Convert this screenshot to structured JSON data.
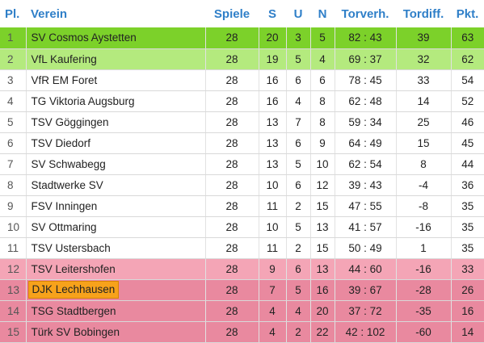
{
  "header": {
    "pos": "Pl.",
    "team": "Verein",
    "games": "Spiele",
    "won": "S",
    "draw": "U",
    "lost": "N",
    "goals": "Torverh.",
    "diff": "Tordiff.",
    "points": "Pkt."
  },
  "colors": {
    "header_text": "#2f7fc8",
    "promotion": "#7cd12a",
    "relegation_playoff_up": "#b4ea7e",
    "relegation_playoff_down": "#f4a5b6",
    "relegation": "#e9899f",
    "highlight": "#f7a21b"
  },
  "highlighted_team": "DJK Lechhausen",
  "rows": [
    {
      "pos": "1",
      "team": "SV Cosmos Aystetten",
      "games": "28",
      "won": "20",
      "draw": "3",
      "lost": "5",
      "goals": "82 : 43",
      "diff": "39",
      "points": "63",
      "zone": "z-top1"
    },
    {
      "pos": "2",
      "team": "VfL Kaufering",
      "games": "28",
      "won": "19",
      "draw": "5",
      "lost": "4",
      "goals": "69 : 37",
      "diff": "32",
      "points": "62",
      "zone": "z-top2"
    },
    {
      "pos": "3",
      "team": "VfR EM Foret",
      "games": "28",
      "won": "16",
      "draw": "6",
      "lost": "6",
      "goals": "78 : 45",
      "diff": "33",
      "points": "54",
      "zone": "z-norm"
    },
    {
      "pos": "4",
      "team": "TG Viktoria Augsburg",
      "games": "28",
      "won": "16",
      "draw": "4",
      "lost": "8",
      "goals": "62 : 48",
      "diff": "14",
      "points": "52",
      "zone": "z-norm"
    },
    {
      "pos": "5",
      "team": "TSV Göggingen",
      "games": "28",
      "won": "13",
      "draw": "7",
      "lost": "8",
      "goals": "59 : 34",
      "diff": "25",
      "points": "46",
      "zone": "z-norm"
    },
    {
      "pos": "6",
      "team": "TSV Diedorf",
      "games": "28",
      "won": "13",
      "draw": "6",
      "lost": "9",
      "goals": "64 : 49",
      "diff": "15",
      "points": "45",
      "zone": "z-norm"
    },
    {
      "pos": "7",
      "team": "SV Schwabegg",
      "games": "28",
      "won": "13",
      "draw": "5",
      "lost": "10",
      "goals": "62 : 54",
      "diff": "8",
      "points": "44",
      "zone": "z-norm"
    },
    {
      "pos": "8",
      "team": "Stadtwerke SV",
      "games": "28",
      "won": "10",
      "draw": "6",
      "lost": "12",
      "goals": "39 : 43",
      "diff": "-4",
      "points": "36",
      "zone": "z-norm"
    },
    {
      "pos": "9",
      "team": "FSV Inningen",
      "games": "28",
      "won": "11",
      "draw": "2",
      "lost": "15",
      "goals": "47 : 55",
      "diff": "-8",
      "points": "35",
      "zone": "z-norm"
    },
    {
      "pos": "10",
      "team": "SV Ottmaring",
      "games": "28",
      "won": "10",
      "draw": "5",
      "lost": "13",
      "goals": "41 : 57",
      "diff": "-16",
      "points": "35",
      "zone": "z-norm"
    },
    {
      "pos": "11",
      "team": "TSV Ustersbach",
      "games": "28",
      "won": "11",
      "draw": "2",
      "lost": "15",
      "goals": "50 : 49",
      "diff": "1",
      "points": "35",
      "zone": "z-norm"
    },
    {
      "pos": "12",
      "team": "TSV Leitershofen",
      "games": "28",
      "won": "9",
      "draw": "6",
      "lost": "13",
      "goals": "44 : 60",
      "diff": "-16",
      "points": "33",
      "zone": "z-down1"
    },
    {
      "pos": "13",
      "team": "DJK Lechhausen",
      "games": "28",
      "won": "7",
      "draw": "5",
      "lost": "16",
      "goals": "39 : 67",
      "diff": "-28",
      "points": "26",
      "zone": "z-down2"
    },
    {
      "pos": "14",
      "team": "TSG Stadtbergen",
      "games": "28",
      "won": "4",
      "draw": "4",
      "lost": "20",
      "goals": "37 : 72",
      "diff": "-35",
      "points": "16",
      "zone": "z-down2"
    },
    {
      "pos": "15",
      "team": "Türk SV Bobingen",
      "games": "28",
      "won": "4",
      "draw": "2",
      "lost": "22",
      "goals": "42 : 102",
      "diff": "-60",
      "points": "14",
      "zone": "z-down2"
    }
  ]
}
